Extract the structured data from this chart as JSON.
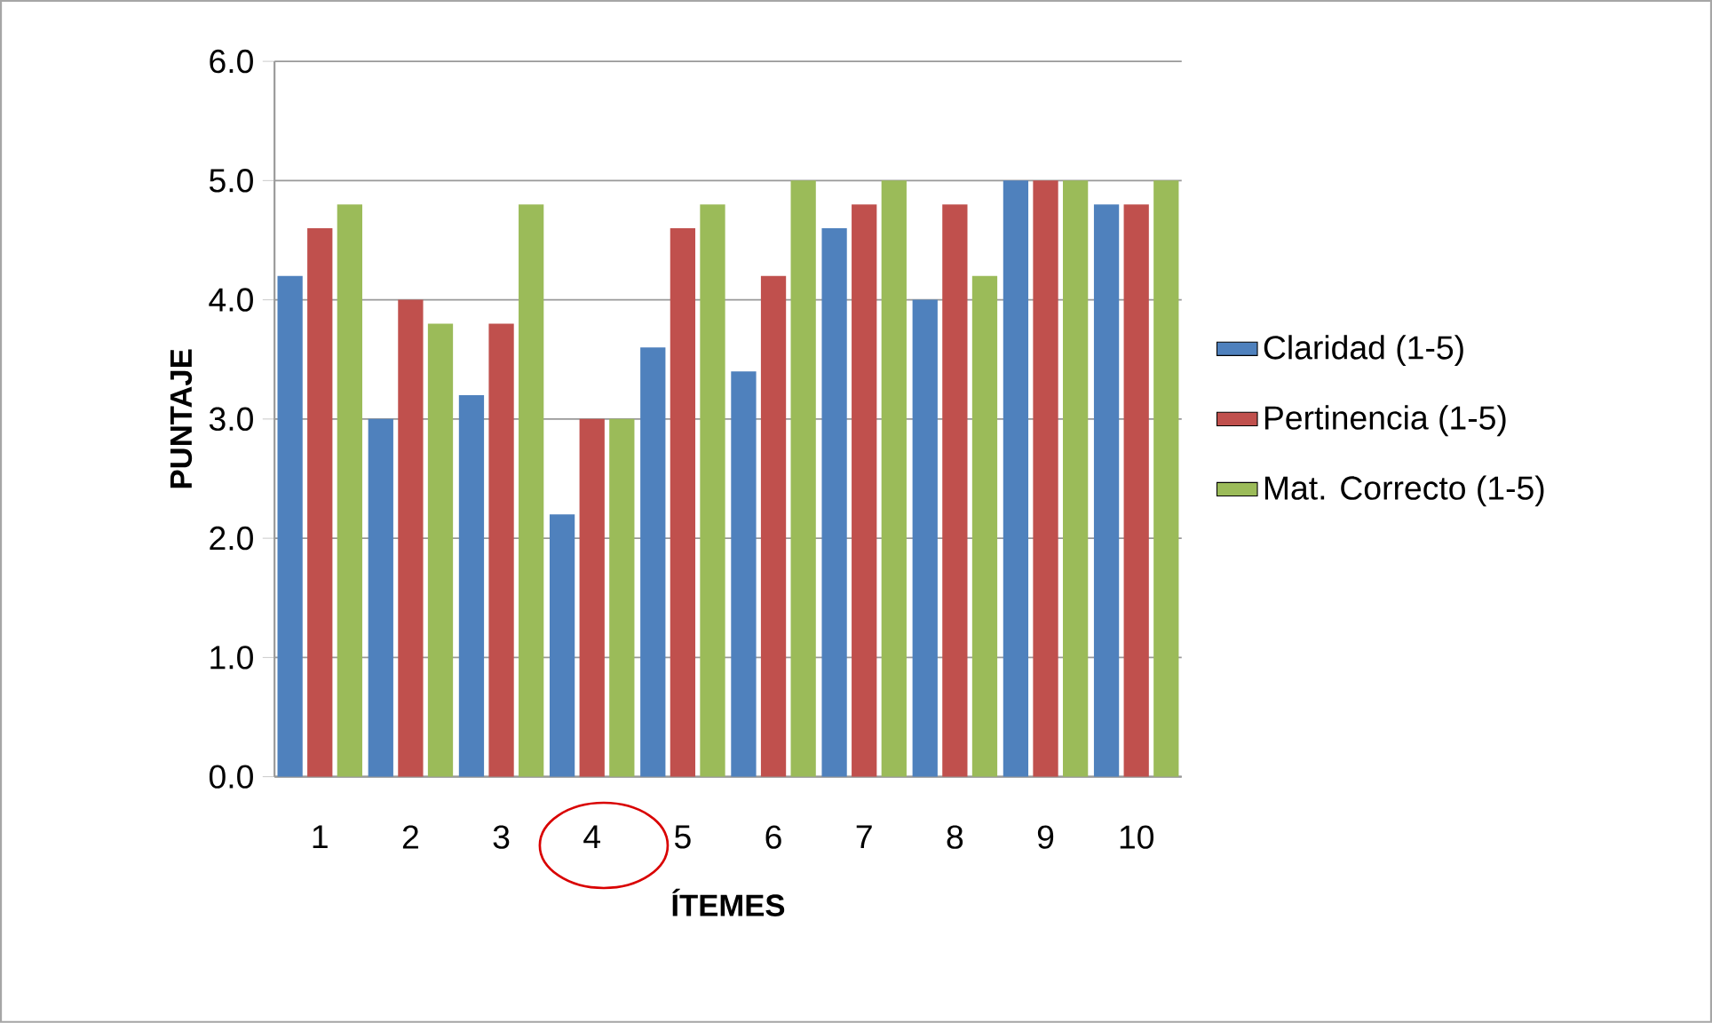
{
  "chart_data": {
    "type": "bar",
    "xlabel": "ÍTEMES",
    "ylabel": "PUNTAJE",
    "categories": [
      "1",
      "2",
      "3",
      "4",
      "5",
      "6",
      "7",
      "8",
      "9",
      "10"
    ],
    "series": [
      {
        "name": "Claridad (1-5)",
        "color": "#4f81bd",
        "values": [
          4.2,
          3.0,
          3.2,
          2.2,
          3.6,
          3.4,
          4.6,
          4.0,
          5.0,
          4.8
        ]
      },
      {
        "name": "Pertinencia (1-5)",
        "color": "#c0504d",
        "values": [
          4.6,
          4.0,
          3.8,
          3.0,
          4.6,
          4.2,
          4.8,
          4.8,
          5.0,
          4.8
        ]
      },
      {
        "name": "Mat. Correcto (1-5)",
        "color": "#9bbb59",
        "values": [
          4.8,
          3.8,
          4.8,
          3.0,
          4.8,
          5.0,
          5.0,
          4.2,
          5.0,
          5.0
        ]
      }
    ],
    "ylim": [
      0,
      6
    ],
    "yticks": [
      {
        "value": 0,
        "label": "0.0"
      },
      {
        "value": 1,
        "label": "1.0"
      },
      {
        "value": 2,
        "label": "2.0"
      },
      {
        "value": 3,
        "label": "3.0"
      },
      {
        "value": 4,
        "label": "4.0"
      },
      {
        "value": 5,
        "label": "5.0"
      },
      {
        "value": 6,
        "label": "6.0"
      }
    ],
    "grid": "y",
    "legend": "right"
  }
}
